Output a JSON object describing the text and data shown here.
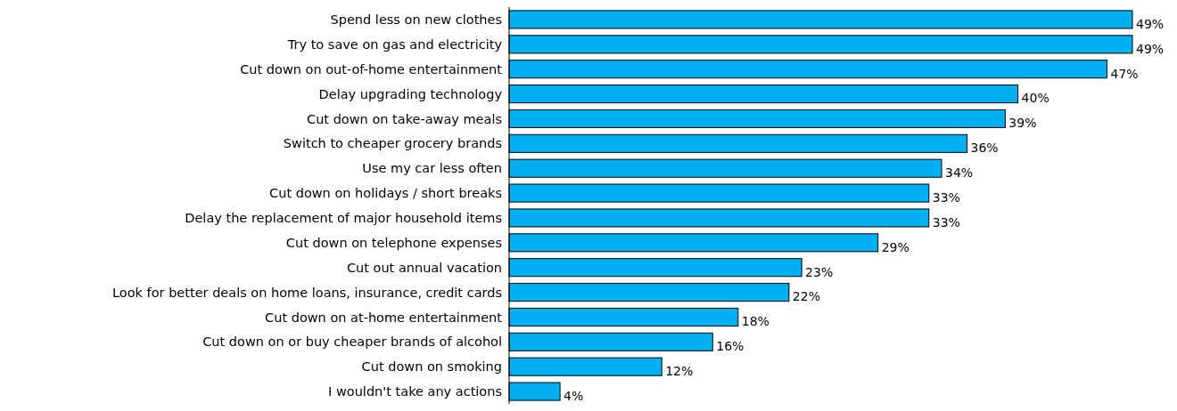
{
  "chart_data": {
    "type": "bar",
    "orientation": "horizontal",
    "categories": [
      "Spend less on new clothes",
      "Try to save on gas and electricity",
      "Cut down on out-of-home entertainment",
      "Delay upgrading technology",
      "Cut down on take-away meals",
      "Switch to cheaper grocery brands",
      "Use my car less often",
      "Cut down on holidays / short breaks",
      "Delay the replacement of major household items",
      "Cut down on telephone expenses",
      "Cut out annual vacation",
      "Look for better deals on home loans, insurance, credit cards",
      "Cut down on at-home entertainment",
      "Cut down on or buy cheaper brands of alcohol",
      "Cut down on smoking",
      "I wouldn't take any actions"
    ],
    "values": [
      49,
      49,
      47,
      40,
      39,
      36,
      34,
      33,
      33,
      29,
      23,
      22,
      18,
      16,
      12,
      4
    ],
    "value_labels": [
      "49%",
      "49%",
      "47%",
      "40%",
      "39%",
      "36%",
      "34%",
      "33%",
      "33%",
      "29%",
      "23%",
      "22%",
      "18%",
      "16%",
      "12%",
      "4%"
    ],
    "color": "#00b0f0"
  }
}
